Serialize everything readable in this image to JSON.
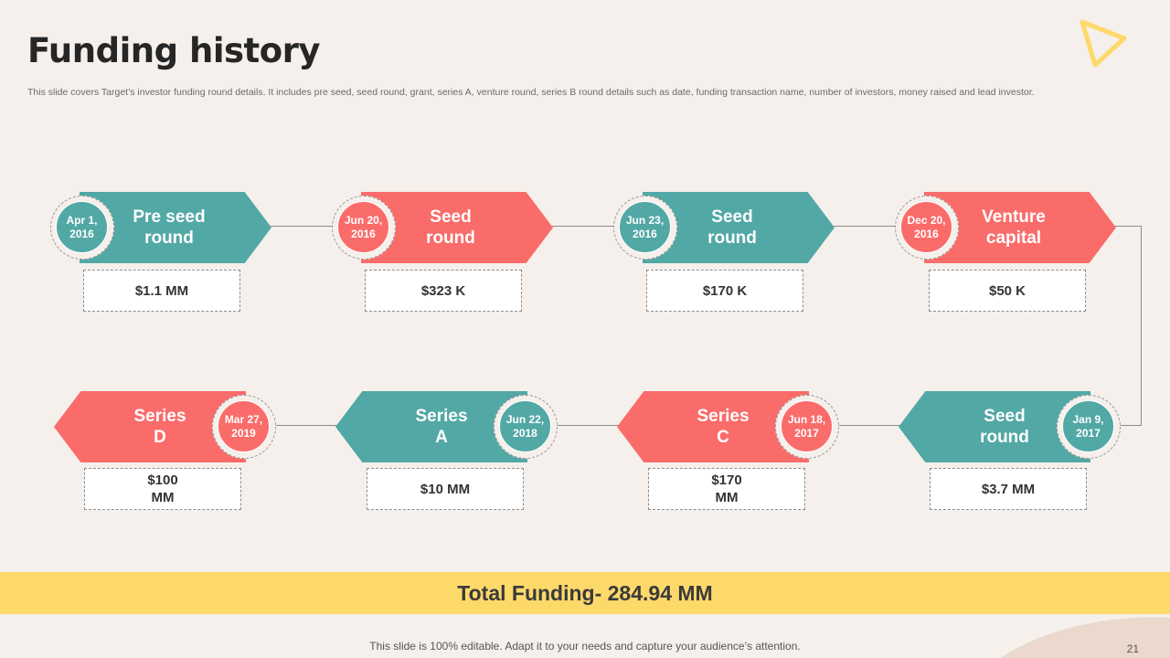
{
  "slide": {
    "title": "Funding history",
    "subtitle": "This slide covers Target’s investor funding round details. It includes pre seed, seed round, grant, series A, venture round, series B round details such as date, funding transaction name, number of investors, money raised and lead investor.",
    "total": "Total Funding- 284.94 MM",
    "footer": "This slide is 100% editable. Adapt it to your needs and capture your audience’s attention.",
    "page_number": "21"
  },
  "colors": {
    "teal": "#52a8a5",
    "coral": "#fa6c6a",
    "banner": "#fdd96a",
    "background": "#f5f0eb"
  },
  "icons": {
    "corner": "play-triangle-icon"
  },
  "rounds": [
    {
      "name": "Pre seed\nround",
      "date": "Apr 1,\n2016",
      "amount": "$1.1 MM"
    },
    {
      "name": "Seed\nround",
      "date": "Jun 20,\n2016",
      "amount": "$323 K"
    },
    {
      "name": "Seed\nround",
      "date": "Jun 23,\n2016",
      "amount": "$170 K"
    },
    {
      "name": "Venture\ncapital",
      "date": "Dec 20,\n2016",
      "amount": "$50 K"
    },
    {
      "name": "Seed\nround",
      "date": "Jan 9,\n2017",
      "amount": "$3.7 MM"
    },
    {
      "name": "Series\nC",
      "date": "Jun 18,\n2017",
      "amount": "$170\nMM"
    },
    {
      "name": "Series\nA",
      "date": "Jun 22,\n2018",
      "amount": "$10 MM"
    },
    {
      "name": "Series\nD",
      "date": "Mar 27,\n2019",
      "amount": "$100\nMM"
    }
  ]
}
